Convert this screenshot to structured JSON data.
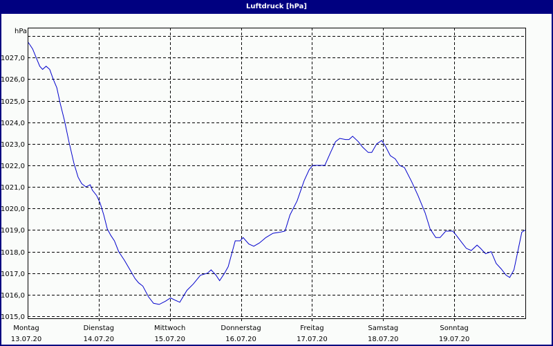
{
  "window": {
    "title": "Luftdruck [hPa]"
  },
  "colors": {
    "titlebar": "#000080",
    "background": "#fafcfa",
    "line": "#0000cc",
    "grid": "#000000"
  },
  "chart_data": {
    "type": "line",
    "title": "Luftdruck [hPa]",
    "xlabel": "",
    "ylabel": "hPa",
    "ylim": [
      1015.0,
      1028.0
    ],
    "yticks": [
      "1015,0",
      "1016,0",
      "1017,0",
      "1018,0",
      "1019,0",
      "1020,0",
      "1021,0",
      "1022,0",
      "1023,0",
      "1024,0",
      "1025,0",
      "1026,0",
      "1027,0"
    ],
    "ytick_values": [
      1015,
      1016,
      1017,
      1018,
      1019,
      1020,
      1021,
      1022,
      1023,
      1024,
      1025,
      1026,
      1027,
      1028
    ],
    "xlim": [
      0,
      7
    ],
    "xticks": [
      {
        "day": "Montag",
        "date": "13.07.20"
      },
      {
        "day": "Dienstag",
        "date": "14.07.20"
      },
      {
        "day": "Mittwoch",
        "date": "15.07.20"
      },
      {
        "day": "Donnerstag",
        "date": "16.07.20"
      },
      {
        "day": "Freitag",
        "date": "17.07.20"
      },
      {
        "day": "Samstag",
        "date": "18.07.20"
      },
      {
        "day": "Sonntag",
        "date": "19.07.20"
      }
    ],
    "grid": true,
    "legend": null,
    "series": [
      {
        "name": "Luftdruck",
        "x_days": [
          0.01,
          0.07,
          0.12,
          0.17,
          0.21,
          0.26,
          0.31,
          0.36,
          0.41,
          0.46,
          0.52,
          0.58,
          0.65,
          0.71,
          0.76,
          0.82,
          0.88,
          0.91,
          0.97,
          1.02,
          1.07,
          1.12,
          1.17,
          1.22,
          1.28,
          1.36,
          1.44,
          1.51,
          1.56,
          1.62,
          1.7,
          1.77,
          1.85,
          1.94,
          2.01,
          2.07,
          2.14,
          2.24,
          2.33,
          2.43,
          2.53,
          2.58,
          2.65,
          2.7,
          2.77,
          2.82,
          2.92,
          2.99,
          3.03,
          3.11,
          3.18,
          3.26,
          3.35,
          3.45,
          3.55,
          3.62,
          3.69,
          3.79,
          3.89,
          3.96,
          4.01,
          4.18,
          4.26,
          4.33,
          4.39,
          4.47,
          4.52,
          4.57,
          4.65,
          4.71,
          4.79,
          4.84,
          4.91,
          4.98,
          5.03,
          5.1,
          5.17,
          5.23,
          5.3,
          5.4,
          5.49,
          5.59,
          5.66,
          5.74,
          5.8,
          5.88,
          5.98,
          6.03,
          6.11,
          6.17,
          6.24,
          6.32,
          6.37,
          6.44,
          6.52,
          6.59,
          6.66,
          6.73,
          6.78,
          6.84,
          6.9,
          6.95,
          7.0
        ],
        "values": [
          1027.7,
          1027.4,
          1027.0,
          1026.6,
          1026.45,
          1026.6,
          1026.45,
          1026.0,
          1025.6,
          1024.85,
          1024.05,
          1023.1,
          1022.1,
          1021.45,
          1021.15,
          1021.0,
          1021.1,
          1020.85,
          1020.6,
          1020.25,
          1019.7,
          1019.05,
          1018.75,
          1018.5,
          1018.0,
          1017.6,
          1017.15,
          1016.75,
          1016.55,
          1016.4,
          1015.9,
          1015.6,
          1015.55,
          1015.7,
          1015.85,
          1015.75,
          1015.65,
          1016.2,
          1016.5,
          1016.9,
          1017.0,
          1017.15,
          1016.9,
          1016.65,
          1017.0,
          1017.3,
          1018.5,
          1018.5,
          1018.65,
          1018.35,
          1018.25,
          1018.4,
          1018.65,
          1018.85,
          1018.9,
          1018.95,
          1019.7,
          1020.35,
          1021.3,
          1021.8,
          1022.0,
          1022.0,
          1022.6,
          1023.1,
          1023.25,
          1023.2,
          1023.2,
          1023.35,
          1023.1,
          1022.85,
          1022.6,
          1022.6,
          1023.0,
          1023.15,
          1022.9,
          1022.45,
          1022.3,
          1022.0,
          1021.9,
          1021.25,
          1020.6,
          1019.8,
          1019.05,
          1018.65,
          1018.65,
          1018.95,
          1018.95,
          1018.75,
          1018.4,
          1018.15,
          1018.05,
          1018.3,
          1018.15,
          1017.9,
          1018.0,
          1017.45,
          1017.2,
          1016.9,
          1016.8,
          1017.15,
          1018.1,
          1018.9,
          1019.0
        ]
      }
    ]
  }
}
